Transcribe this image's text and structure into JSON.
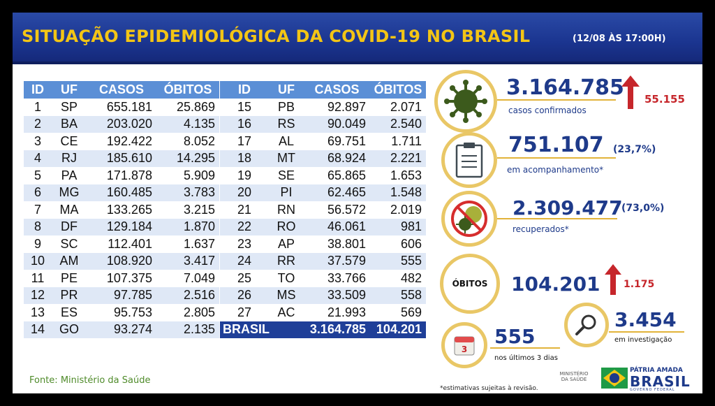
{
  "header": {
    "title": "SITUAÇÃO EPIDEMIOLÓGICA DA COVID-19 NO BRASIL",
    "date": "(12/08 ÀS 17:00H)"
  },
  "table": {
    "columns": [
      "ID",
      "UF",
      "CASOS",
      "ÓBITOS"
    ],
    "left_rows": [
      [
        "1",
        "SP",
        "655.181",
        "25.869"
      ],
      [
        "2",
        "BA",
        "203.020",
        "4.135"
      ],
      [
        "3",
        "CE",
        "192.422",
        "8.052"
      ],
      [
        "4",
        "RJ",
        "185.610",
        "14.295"
      ],
      [
        "5",
        "PA",
        "171.878",
        "5.909"
      ],
      [
        "6",
        "MG",
        "160.485",
        "3.783"
      ],
      [
        "7",
        "MA",
        "133.265",
        "3.215"
      ],
      [
        "8",
        "DF",
        "129.184",
        "1.870"
      ],
      [
        "9",
        "SC",
        "112.401",
        "1.637"
      ],
      [
        "10",
        "AM",
        "108.920",
        "3.417"
      ],
      [
        "11",
        "PE",
        "107.375",
        "7.049"
      ],
      [
        "12",
        "PR",
        "97.785",
        "2.516"
      ],
      [
        "13",
        "ES",
        "95.753",
        "2.805"
      ],
      [
        "14",
        "GO",
        "93.274",
        "2.135"
      ]
    ],
    "right_rows": [
      [
        "15",
        "PB",
        "92.897",
        "2.071"
      ],
      [
        "16",
        "RS",
        "90.049",
        "2.540"
      ],
      [
        "17",
        "AL",
        "69.751",
        "1.711"
      ],
      [
        "18",
        "MT",
        "68.924",
        "2.221"
      ],
      [
        "19",
        "SE",
        "65.865",
        "1.653"
      ],
      [
        "20",
        "PI",
        "62.465",
        "1.548"
      ],
      [
        "21",
        "RN",
        "56.572",
        "2.019"
      ],
      [
        "22",
        "RO",
        "46.061",
        "981"
      ],
      [
        "23",
        "AP",
        "38.801",
        "606"
      ],
      [
        "24",
        "RR",
        "37.579",
        "555"
      ],
      [
        "25",
        "TO",
        "33.766",
        "482"
      ],
      [
        "26",
        "MS",
        "33.509",
        "558"
      ],
      [
        "27",
        "AC",
        "21.993",
        "569"
      ]
    ],
    "total": {
      "label": "BRASIL",
      "casos": "3.164.785",
      "obitos": "104.201"
    }
  },
  "source": "Fonte: Ministério da Saúde",
  "stats": {
    "confirmed": {
      "value": "3.164.785",
      "label": "casos confirmados",
      "delta": "55.155",
      "icon": "virus-icon"
    },
    "monitoring": {
      "value": "751.107",
      "pct": "(23,7%)",
      "label": "em acompanhamento*",
      "icon": "clipboard-icon"
    },
    "recovered": {
      "value": "2.309.477",
      "pct": "(73,0%)",
      "label": "recuperados*",
      "icon": "no-virus-icon"
    },
    "deaths": {
      "badge": "ÓBITOS",
      "value": "104.201",
      "delta": "1.175"
    },
    "recent": {
      "value": "555",
      "label": "nos últimos 3 dias",
      "icon": "calendar-icon",
      "icon_text": "3"
    },
    "investigation": {
      "value": "3.454",
      "label": "em investigação",
      "icon": "magnifier-icon"
    }
  },
  "footnote": "*estimativas sujeitas à revisão.",
  "logos": {
    "ministerio": "MINISTÉRIO DA SAÚDE",
    "patria": "PÁTRIA AMADA",
    "brasil": "BRASIL",
    "governo": "GOVERNO FEDERAL"
  },
  "colors": {
    "header_bg": "#1b3590",
    "title": "#f3c515",
    "accent_blue": "#1e3a8a",
    "up_red": "#c6262b",
    "gold": "#e9c766"
  }
}
